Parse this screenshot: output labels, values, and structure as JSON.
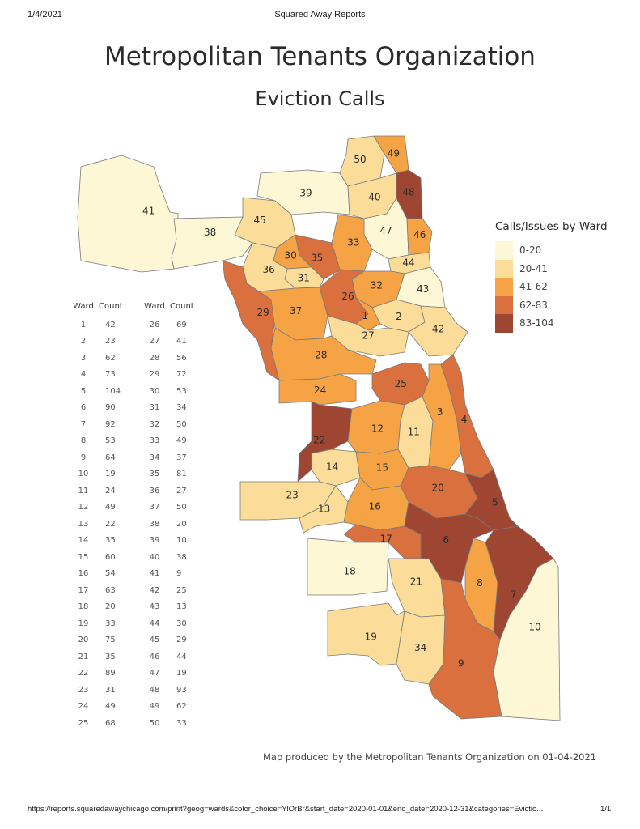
{
  "header": {
    "date": "1/4/2021",
    "title": "Squared Away Reports"
  },
  "title": "Metropolitan Tenants Organization",
  "subtitle": "Eviction Calls",
  "legend": {
    "title": "Calls/Issues by Ward",
    "items": [
      {
        "label": "0-20",
        "color": "#fef7d6"
      },
      {
        "label": "20-41",
        "color": "#fbdd99"
      },
      {
        "label": "41-62",
        "color": "#f5a345"
      },
      {
        "label": "62-83",
        "color": "#d9703e"
      },
      {
        "label": "83-104",
        "color": "#9e4632"
      }
    ]
  },
  "table": {
    "col_ward": "Ward",
    "col_count": "Count",
    "rows": [
      [
        "1",
        "42"
      ],
      [
        "2",
        "23"
      ],
      [
        "3",
        "62"
      ],
      [
        "4",
        "73"
      ],
      [
        "5",
        "104"
      ],
      [
        "6",
        "90"
      ],
      [
        "7",
        "92"
      ],
      [
        "8",
        "53"
      ],
      [
        "9",
        "64"
      ],
      [
        "10",
        "19"
      ],
      [
        "11",
        "24"
      ],
      [
        "12",
        "49"
      ],
      [
        "13",
        "22"
      ],
      [
        "14",
        "35"
      ],
      [
        "15",
        "60"
      ],
      [
        "16",
        "54"
      ],
      [
        "17",
        "63"
      ],
      [
        "18",
        "20"
      ],
      [
        "19",
        "33"
      ],
      [
        "20",
        "75"
      ],
      [
        "21",
        "35"
      ],
      [
        "22",
        "89"
      ],
      [
        "23",
        "31"
      ],
      [
        "24",
        "49"
      ],
      [
        "25",
        "68"
      ],
      [
        "26",
        "69"
      ],
      [
        "27",
        "41"
      ],
      [
        "28",
        "56"
      ],
      [
        "29",
        "72"
      ],
      [
        "30",
        "53"
      ],
      [
        "31",
        "34"
      ],
      [
        "32",
        "50"
      ],
      [
        "33",
        "49"
      ],
      [
        "34",
        "37"
      ],
      [
        "35",
        "81"
      ],
      [
        "36",
        "27"
      ],
      [
        "37",
        "50"
      ],
      [
        "38",
        "20"
      ],
      [
        "39",
        "10"
      ],
      [
        "40",
        "38"
      ],
      [
        "41",
        "9"
      ],
      [
        "42",
        "25"
      ],
      [
        "43",
        "13"
      ],
      [
        "44",
        "30"
      ],
      [
        "45",
        "29"
      ],
      [
        "46",
        "44"
      ],
      [
        "47",
        "19"
      ],
      [
        "48",
        "93"
      ],
      [
        "49",
        "62"
      ],
      [
        "50",
        "33"
      ]
    ]
  },
  "credit": "Map produced by the Metropolitan Tenants Organization on 01-04-2021",
  "footer": {
    "url": "https://reports.squaredawaychicago.com/print?geog=wards&color_choice=YlOrBr&start_date=2020-01-01&end_date=2020-12-31&categories=Evictio...",
    "page": "1/1"
  }
}
